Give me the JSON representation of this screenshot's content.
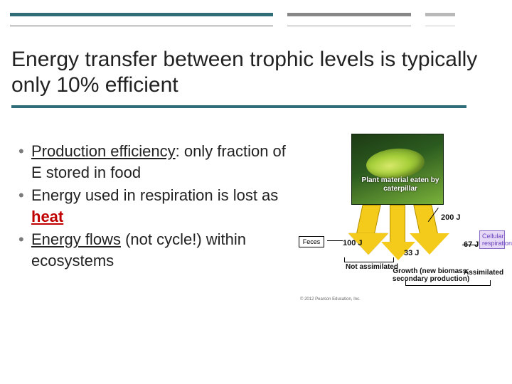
{
  "decor": {
    "rule_colors": {
      "primary": "#2f6e78",
      "mid": "#888888",
      "light": "#b9b9b9"
    }
  },
  "title": "Energy transfer between trophic levels is typically only 10% efficient",
  "bullets": [
    {
      "prefix": "Production efficiency",
      "rest": ": only fraction of E stored in food"
    },
    {
      "prefix": "Energy used in respiration is lost as ",
      "heat": "heat"
    },
    {
      "flows": "Energy flows",
      "rest": " (not cycle!) within ecosystems"
    }
  ],
  "diagram": {
    "caterpillar_label": "Plant material eaten by caterpillar",
    "energy_values": {
      "input_label": "200 J",
      "feces_label": "100 J",
      "respiration_label": "67 J",
      "growth_label": "33 J"
    },
    "tags": {
      "feces": "Feces",
      "cellular_respiration": "Cellular respiration"
    },
    "captions": {
      "not_assimilated": "Not assimilated",
      "growth": "Growth (new biomass; secondary production)",
      "assimilated": "Assimilated"
    },
    "arrow_color": "#f4cb1a",
    "copyright": "© 2012 Pearson Education, Inc."
  }
}
